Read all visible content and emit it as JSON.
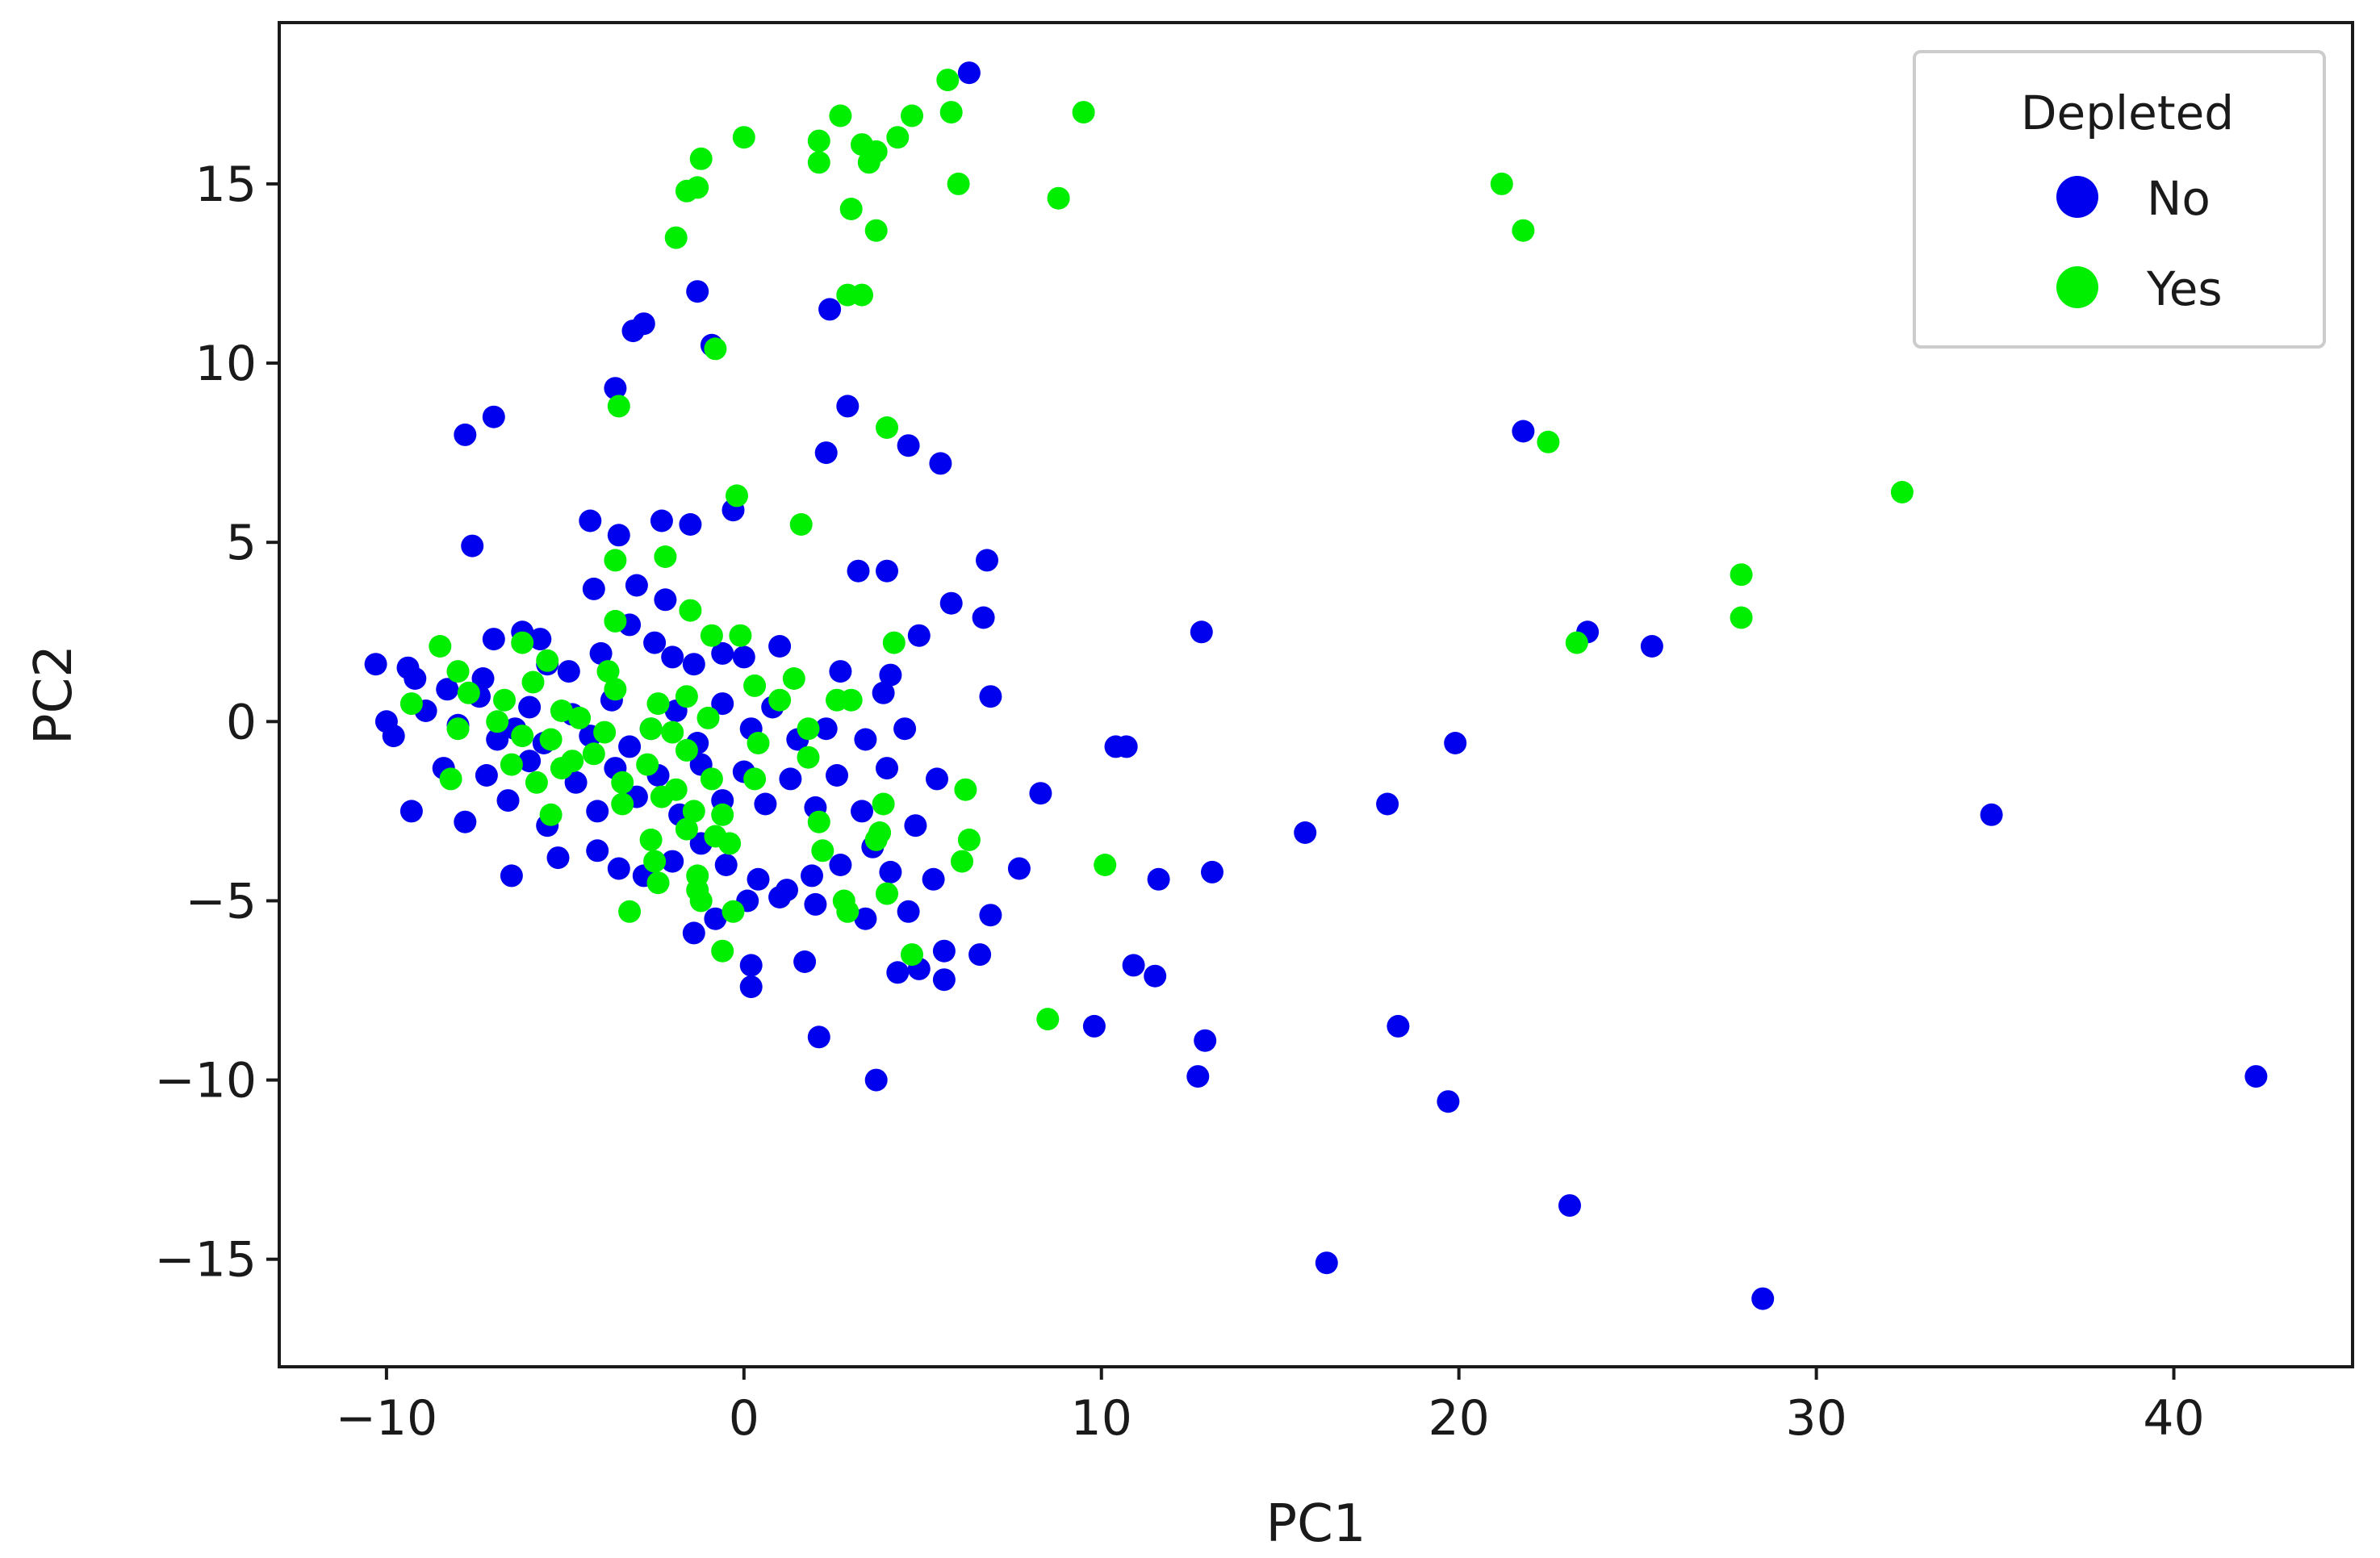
{
  "chart_data": {
    "type": "scatter",
    "xlabel": "PC1",
    "ylabel": "PC2",
    "xlim": [
      -13,
      45
    ],
    "ylim": [
      -18,
      19.5
    ],
    "xticks": [
      -10,
      0,
      10,
      20,
      30,
      40
    ],
    "yticks": [
      -15,
      -10,
      -5,
      0,
      5,
      10,
      15
    ],
    "xtick_labels": [
      "−10",
      "0",
      "10",
      "20",
      "30",
      "40"
    ],
    "ytick_labels": [
      "−15",
      "−10",
      "−5",
      "0",
      "5",
      "10",
      "15"
    ],
    "grid": false,
    "legend": {
      "title": "Depleted",
      "position": "top-right",
      "entries": [
        "No",
        "Yes"
      ]
    },
    "series": [
      {
        "name": "No",
        "color": "#0000ee",
        "points": [
          [
            6.3,
            18.1
          ],
          [
            -1.3,
            12.0
          ],
          [
            2.4,
            11.5
          ],
          [
            -2.8,
            11.1
          ],
          [
            -3.1,
            10.9
          ],
          [
            -0.9,
            10.5
          ],
          [
            -3.6,
            9.3
          ],
          [
            2.9,
            8.8
          ],
          [
            -7.8,
            8.0
          ],
          [
            -7.0,
            8.5
          ],
          [
            4.6,
            7.7
          ],
          [
            2.3,
            7.5
          ],
          [
            5.5,
            7.2
          ],
          [
            21.8,
            8.1
          ],
          [
            -0.3,
            5.9
          ],
          [
            -1.5,
            5.5
          ],
          [
            -4.3,
            5.6
          ],
          [
            -3.5,
            5.2
          ],
          [
            -2.3,
            5.6
          ],
          [
            -7.6,
            4.9
          ],
          [
            3.2,
            4.2
          ],
          [
            4.0,
            4.2
          ],
          [
            6.8,
            4.5
          ],
          [
            5.8,
            3.3
          ],
          [
            -2.2,
            3.4
          ],
          [
            6.7,
            2.9
          ],
          [
            -4.2,
            3.7
          ],
          [
            -3.0,
            3.8
          ],
          [
            12.8,
            2.5
          ],
          [
            23.6,
            2.5
          ],
          [
            25.4,
            2.1
          ],
          [
            -10.3,
            1.6
          ],
          [
            -9.4,
            1.5
          ],
          [
            -9.2,
            1.2
          ],
          [
            -8.3,
            0.9
          ],
          [
            -7.3,
            1.2
          ],
          [
            -7.0,
            2.3
          ],
          [
            -6.2,
            2.5
          ],
          [
            -5.7,
            2.3
          ],
          [
            -5.5,
            1.6
          ],
          [
            -4.9,
            1.4
          ],
          [
            -4.0,
            1.9
          ],
          [
            -3.2,
            2.7
          ],
          [
            -2.5,
            2.2
          ],
          [
            -2.0,
            1.8
          ],
          [
            -1.4,
            1.6
          ],
          [
            -0.6,
            1.9
          ],
          [
            0.0,
            1.8
          ],
          [
            1.0,
            2.1
          ],
          [
            2.7,
            1.4
          ],
          [
            4.9,
            2.4
          ],
          [
            4.1,
            1.3
          ],
          [
            -10.0,
            0.0
          ],
          [
            -9.8,
            -0.4
          ],
          [
            -8.9,
            0.3
          ],
          [
            -8.0,
            -0.1
          ],
          [
            -7.4,
            0.7
          ],
          [
            -6.9,
            -0.5
          ],
          [
            -6.4,
            -0.2
          ],
          [
            -6.0,
            0.4
          ],
          [
            -5.6,
            -0.6
          ],
          [
            -4.8,
            0.2
          ],
          [
            -4.3,
            -0.4
          ],
          [
            -3.7,
            0.6
          ],
          [
            -3.2,
            -0.7
          ],
          [
            -2.6,
            -0.2
          ],
          [
            -1.9,
            0.3
          ],
          [
            -1.3,
            -0.6
          ],
          [
            -0.6,
            0.5
          ],
          [
            0.2,
            -0.2
          ],
          [
            0.8,
            0.4
          ],
          [
            1.5,
            -0.5
          ],
          [
            2.3,
            -0.2
          ],
          [
            3.4,
            -0.5
          ],
          [
            4.5,
            -0.2
          ],
          [
            3.9,
            0.8
          ],
          [
            6.9,
            0.7
          ],
          [
            -9.3,
            -2.5
          ],
          [
            -8.4,
            -1.3
          ],
          [
            -7.8,
            -2.8
          ],
          [
            -7.2,
            -1.5
          ],
          [
            -6.6,
            -2.2
          ],
          [
            -6.0,
            -1.1
          ],
          [
            -5.5,
            -2.9
          ],
          [
            -4.7,
            -1.7
          ],
          [
            -4.1,
            -2.5
          ],
          [
            -3.6,
            -1.3
          ],
          [
            -3.0,
            -2.1
          ],
          [
            -2.4,
            -1.5
          ],
          [
            -1.8,
            -2.6
          ],
          [
            -1.2,
            -1.2
          ],
          [
            -0.6,
            -2.2
          ],
          [
            0.0,
            -1.4
          ],
          [
            0.6,
            -2.3
          ],
          [
            1.3,
            -1.6
          ],
          [
            2.0,
            -2.4
          ],
          [
            2.6,
            -1.5
          ],
          [
            3.3,
            -2.5
          ],
          [
            4.0,
            -1.3
          ],
          [
            4.8,
            -2.9
          ],
          [
            5.4,
            -1.6
          ],
          [
            -6.5,
            -4.3
          ],
          [
            -5.2,
            -3.8
          ],
          [
            -4.1,
            -3.6
          ],
          [
            -3.5,
            -4.1
          ],
          [
            -2.8,
            -4.3
          ],
          [
            -2.0,
            -3.9
          ],
          [
            -1.2,
            -3.4
          ],
          [
            -0.5,
            -4.0
          ],
          [
            0.4,
            -4.4
          ],
          [
            1.0,
            -4.9
          ],
          [
            1.9,
            -4.3
          ],
          [
            2.7,
            -4.0
          ],
          [
            3.6,
            -3.5
          ],
          [
            4.1,
            -4.2
          ],
          [
            5.3,
            -4.4
          ],
          [
            7.7,
            -4.1
          ],
          [
            8.3,
            -2.0
          ],
          [
            6.9,
            -5.4
          ],
          [
            -1.4,
            -5.9
          ],
          [
            -0.8,
            -5.5
          ],
          [
            0.1,
            -5.0
          ],
          [
            1.2,
            -4.7
          ],
          [
            2.0,
            -5.1
          ],
          [
            3.4,
            -5.5
          ],
          [
            4.6,
            -5.3
          ],
          [
            5.6,
            -6.4
          ],
          [
            6.6,
            -6.5
          ],
          [
            0.2,
            -6.8
          ],
          [
            0.2,
            -7.4
          ],
          [
            1.7,
            -6.7
          ],
          [
            4.3,
            -7.0
          ],
          [
            4.9,
            -6.9
          ],
          [
            5.6,
            -7.2
          ],
          [
            10.4,
            -0.7
          ],
          [
            10.7,
            -0.7
          ],
          [
            11.6,
            -4.4
          ],
          [
            13.1,
            -4.2
          ],
          [
            10.9,
            -6.8
          ],
          [
            11.5,
            -7.1
          ],
          [
            9.8,
            -8.5
          ],
          [
            12.9,
            -8.9
          ],
          [
            12.7,
            -9.9
          ],
          [
            15.7,
            -3.1
          ],
          [
            18.0,
            -2.3
          ],
          [
            19.9,
            -0.6
          ],
          [
            18.3,
            -8.5
          ],
          [
            19.7,
            -10.6
          ],
          [
            23.1,
            -13.5
          ],
          [
            16.3,
            -15.1
          ],
          [
            28.5,
            -16.1
          ],
          [
            34.9,
            -2.6
          ],
          [
            42.3,
            -9.9
          ],
          [
            2.1,
            -8.8
          ],
          [
            3.7,
            -10.0
          ]
        ]
      },
      {
        "name": "Yes",
        "color": "#00ee00",
        "points": [
          [
            5.7,
            17.9
          ],
          [
            9.5,
            17.0
          ],
          [
            0.0,
            16.3
          ],
          [
            2.7,
            16.9
          ],
          [
            4.7,
            16.9
          ],
          [
            5.8,
            17.0
          ],
          [
            2.1,
            16.2
          ],
          [
            3.3,
            16.1
          ],
          [
            4.3,
            16.3
          ],
          [
            3.7,
            15.9
          ],
          [
            -1.2,
            15.7
          ],
          [
            2.1,
            15.6
          ],
          [
            3.5,
            15.6
          ],
          [
            -1.6,
            14.8
          ],
          [
            -1.3,
            14.9
          ],
          [
            6.0,
            15.0
          ],
          [
            8.8,
            14.6
          ],
          [
            3.0,
            14.3
          ],
          [
            -1.9,
            13.5
          ],
          [
            3.7,
            13.7
          ],
          [
            21.2,
            15.0
          ],
          [
            21.8,
            13.7
          ],
          [
            2.9,
            11.9
          ],
          [
            3.3,
            11.9
          ],
          [
            -0.8,
            10.4
          ],
          [
            -3.5,
            8.8
          ],
          [
            4.0,
            8.2
          ],
          [
            22.5,
            7.8
          ],
          [
            32.4,
            6.4
          ],
          [
            -0.2,
            6.3
          ],
          [
            1.6,
            5.5
          ],
          [
            -3.6,
            4.5
          ],
          [
            -2.2,
            4.6
          ],
          [
            27.9,
            4.1
          ],
          [
            27.9,
            2.9
          ],
          [
            23.3,
            2.2
          ],
          [
            -1.5,
            3.1
          ],
          [
            -3.6,
            2.8
          ],
          [
            -0.9,
            2.4
          ],
          [
            -0.1,
            2.4
          ],
          [
            4.2,
            2.2
          ],
          [
            -8.5,
            2.1
          ],
          [
            -6.2,
            2.2
          ],
          [
            -8.0,
            1.4
          ],
          [
            -5.5,
            1.7
          ],
          [
            -3.8,
            1.4
          ],
          [
            -9.3,
            0.5
          ],
          [
            -7.7,
            0.8
          ],
          [
            -6.7,
            0.6
          ],
          [
            -5.9,
            1.1
          ],
          [
            -3.6,
            0.9
          ],
          [
            -2.4,
            0.5
          ],
          [
            -1.6,
            0.7
          ],
          [
            0.3,
            1.0
          ],
          [
            1.4,
            1.2
          ],
          [
            -8.0,
            -0.2
          ],
          [
            -6.9,
            0.0
          ],
          [
            -6.2,
            -0.4
          ],
          [
            -5.4,
            -0.5
          ],
          [
            -5.1,
            0.3
          ],
          [
            -4.8,
            -1.1
          ],
          [
            -4.6,
            0.1
          ],
          [
            -4.2,
            -0.9
          ],
          [
            -3.9,
            -0.3
          ],
          [
            -2.6,
            -0.2
          ],
          [
            -2.0,
            -0.3
          ],
          [
            -1.6,
            -0.8
          ],
          [
            -1.0,
            0.1
          ],
          [
            0.4,
            -0.6
          ],
          [
            1.0,
            0.6
          ],
          [
            1.8,
            -0.2
          ],
          [
            2.6,
            0.6
          ],
          [
            3.0,
            0.6
          ],
          [
            -8.2,
            -1.6
          ],
          [
            -6.5,
            -1.2
          ],
          [
            -5.8,
            -1.7
          ],
          [
            -5.1,
            -1.3
          ],
          [
            -3.4,
            -1.7
          ],
          [
            -2.7,
            -1.2
          ],
          [
            -1.9,
            -1.9
          ],
          [
            -1.4,
            -2.5
          ],
          [
            -0.9,
            -1.6
          ],
          [
            0.3,
            -1.6
          ],
          [
            1.8,
            -1.0
          ],
          [
            6.2,
            -1.9
          ],
          [
            -5.4,
            -2.6
          ],
          [
            -3.4,
            -2.3
          ],
          [
            -2.3,
            -2.1
          ],
          [
            -2.6,
            -3.3
          ],
          [
            -1.6,
            -3.0
          ],
          [
            -0.8,
            -3.2
          ],
          [
            -0.6,
            -2.6
          ],
          [
            2.1,
            -2.8
          ],
          [
            3.9,
            -2.3
          ],
          [
            -1.3,
            -4.3
          ],
          [
            -2.5,
            -3.9
          ],
          [
            -2.4,
            -4.5
          ],
          [
            -1.3,
            -4.7
          ],
          [
            -0.4,
            -3.4
          ],
          [
            2.2,
            -3.6
          ],
          [
            3.8,
            -3.1
          ],
          [
            3.7,
            -3.3
          ],
          [
            4.0,
            -4.8
          ],
          [
            6.3,
            -3.3
          ],
          [
            6.1,
            -3.9
          ],
          [
            -3.2,
            -5.3
          ],
          [
            -1.2,
            -5.0
          ],
          [
            -0.3,
            -5.3
          ],
          [
            2.8,
            -5.0
          ],
          [
            2.9,
            -5.3
          ],
          [
            -0.6,
            -6.4
          ],
          [
            4.7,
            -6.5
          ],
          [
            10.1,
            -4.0
          ],
          [
            8.5,
            -8.3
          ]
        ]
      }
    ]
  }
}
